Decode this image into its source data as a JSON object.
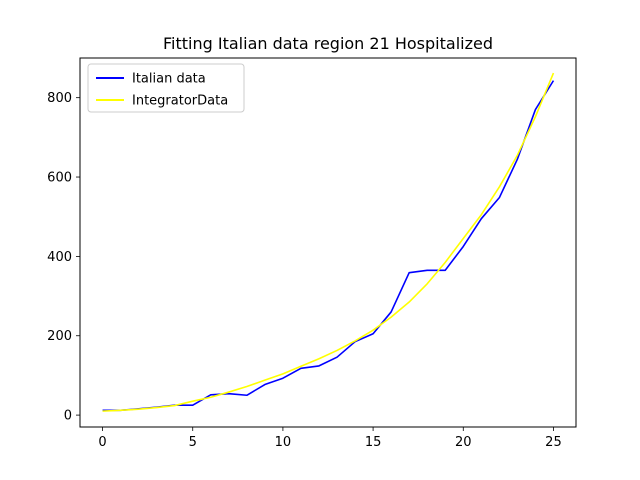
{
  "chart_data": {
    "type": "line",
    "title": "Fitting Italian data region 21 Hospitalized",
    "xlabel": "",
    "ylabel": "",
    "xlim": [
      -1.25,
      26.25
    ],
    "ylim": [
      -30,
      900
    ],
    "xticks": [
      0,
      5,
      10,
      15,
      20,
      25
    ],
    "yticks": [
      0,
      200,
      400,
      600,
      800
    ],
    "grid": false,
    "legend": "top-left",
    "x": [
      0,
      1,
      2,
      3,
      4,
      5,
      6,
      7,
      8,
      9,
      10,
      11,
      12,
      13,
      14,
      15,
      16,
      17,
      18,
      19,
      20,
      21,
      22,
      23,
      24,
      25
    ],
    "series": [
      {
        "name": "Italian data",
        "color": "#0000ff",
        "values": [
          12,
          12,
          16,
          20,
          25,
          25,
          51,
          54,
          50,
          77,
          93,
          118,
          124,
          146,
          185,
          205,
          260,
          359,
          365,
          365,
          425,
          495,
          548,
          645,
          770,
          843
        ]
      },
      {
        "name": "IntegratorData",
        "color": "#ffff00",
        "values": [
          10,
          12,
          15,
          19,
          24,
          35,
          45,
          58,
          72,
          88,
          104,
          123,
          142,
          163,
          187,
          214,
          247,
          285,
          331,
          385,
          445,
          505,
          575,
          655,
          752,
          862
        ]
      }
    ]
  }
}
